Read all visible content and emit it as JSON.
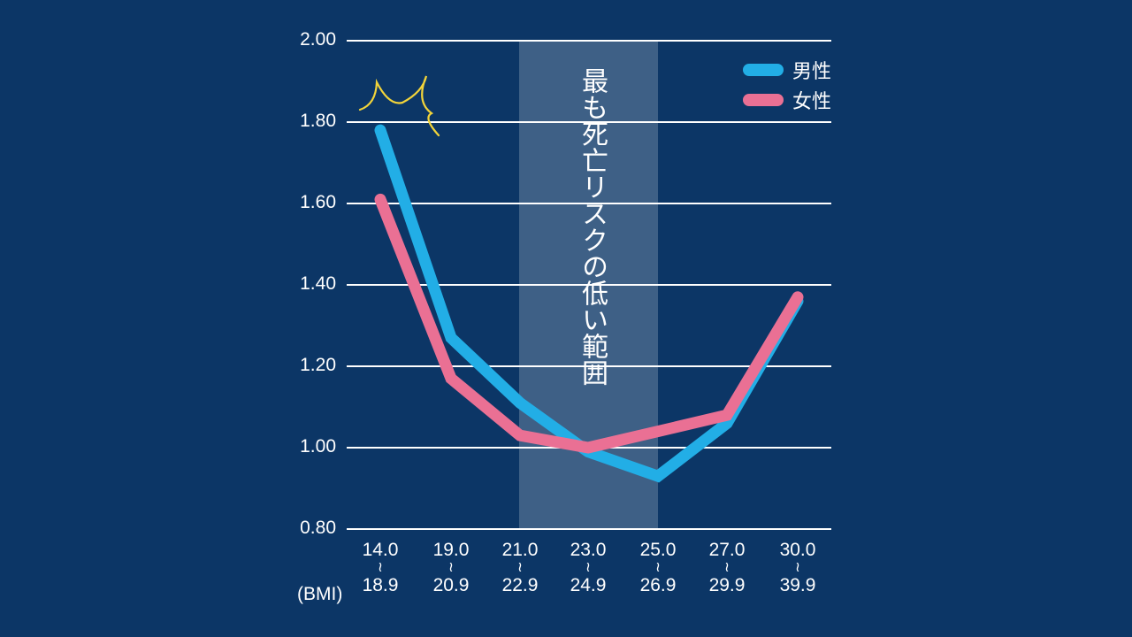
{
  "chart_data": {
    "type": "line",
    "title": "",
    "xlabel": "(BMI)",
    "ylabel": "",
    "ylim": [
      0.8,
      2.0
    ],
    "yticks": [
      "2.00",
      "1.80",
      "1.60",
      "1.40",
      "1.20",
      "1.00",
      "0.80"
    ],
    "categories": [
      {
        "from": "14.0",
        "to": "18.9"
      },
      {
        "from": "19.0",
        "to": "20.9"
      },
      {
        "from": "21.0",
        "to": "22.9"
      },
      {
        "from": "23.0",
        "to": "24.9"
      },
      {
        "from": "25.0",
        "to": "26.9"
      },
      {
        "from": "27.0",
        "to": "29.9"
      },
      {
        "from": "30.0",
        "to": "39.9"
      }
    ],
    "range_separator": "≀",
    "series": [
      {
        "name": "男性",
        "color": "#22aee6",
        "values": [
          1.78,
          1.27,
          1.11,
          0.99,
          0.93,
          1.06,
          1.36
        ]
      },
      {
        "name": "女性",
        "color": "#ea7094",
        "values": [
          1.61,
          1.17,
          1.03,
          1.0,
          1.04,
          1.08,
          1.37
        ]
      }
    ],
    "highlight_band": {
      "from_index": 2,
      "to_index": 4,
      "label": "最も死亡リスクの低い範囲",
      "color": "#3e6086"
    },
    "grid": true,
    "legend_position": "top-right",
    "annotation": "yellow emphasis marks near 14.0–18.9 male point"
  },
  "colors": {
    "background": "#0c3666",
    "grid": "#ffffff",
    "accent_annotation": "#f2d43a"
  }
}
